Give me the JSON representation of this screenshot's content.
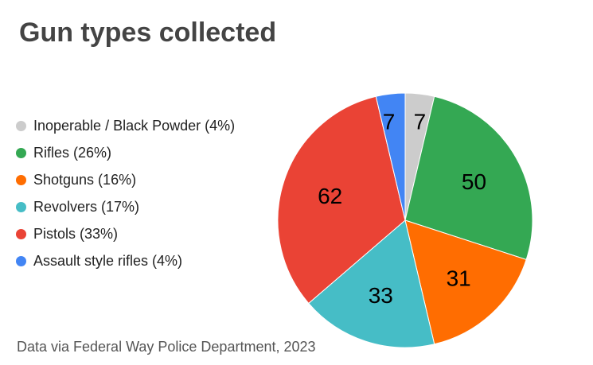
{
  "chart_data": {
    "type": "pie",
    "title": "Gun types collected",
    "source": "Data via Federal Way Police Department, 2023",
    "legend_position": "left",
    "start_angle_deg": 0,
    "direction": "clockwise",
    "slices": [
      {
        "name": "Inoperable / Black Powder",
        "legend": "Inoperable / Black Powder (4%)",
        "value": 7,
        "label": "7",
        "color": "#cccccc"
      },
      {
        "name": "Rifles",
        "legend": "Rifles (26%)",
        "value": 50,
        "label": "50",
        "color": "#34a853"
      },
      {
        "name": "Shotguns",
        "legend": "Shotguns (16%)",
        "value": 31,
        "label": "31",
        "color": "#ff6d01"
      },
      {
        "name": "Revolvers",
        "legend": "Revolvers (17%)",
        "value": 33,
        "label": "33",
        "color": "#46bdc6"
      },
      {
        "name": "Pistols",
        "legend": "Pistols (33%)",
        "value": 62,
        "label": "62",
        "color": "#ea4335"
      },
      {
        "name": "Assault style rifles",
        "legend": "Assault style rifles (4%)",
        "value": 7,
        "label": "7",
        "color": "#4285f4"
      }
    ]
  }
}
